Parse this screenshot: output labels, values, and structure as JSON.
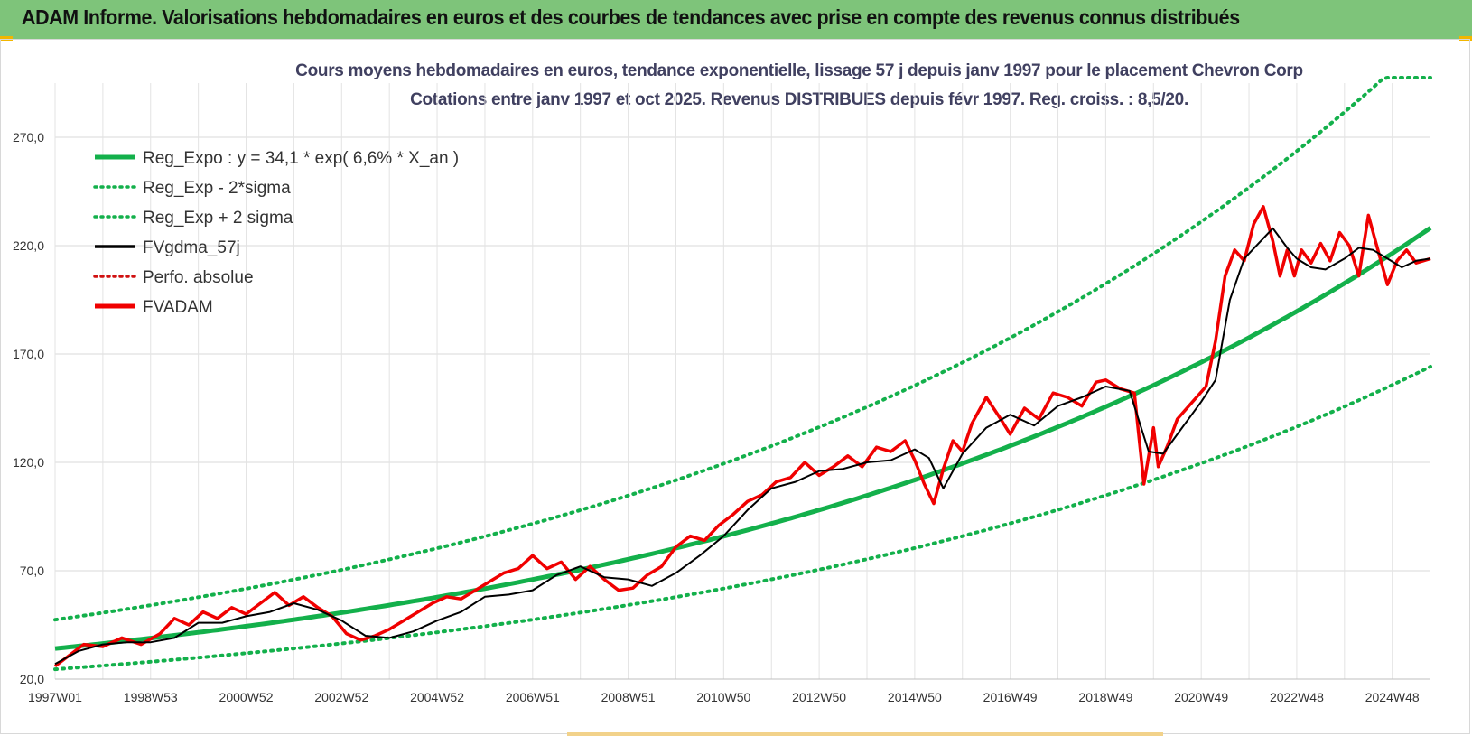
{
  "header": {
    "title": "ADAM Informe. Valorisations hebdomadaires en euros et des courbes de tendances avec prise en compte des revenus connus distribués"
  },
  "chart_data": {
    "type": "line",
    "title": "Cours moyens hebdomadaires en euros, tendance exponentielle, lissage 57 j depuis janv 1997 pour le placement Chevron Corp",
    "subtitle": "Cotations entre janv 1997 et oct 2025. Revenus DISTRIBUES depuis févr 1997. Reg. croiss. : 8,5/20.",
    "xlabel": "",
    "ylabel": "",
    "ylim": [
      20,
      295
    ],
    "xlim": [
      1997.0,
      2025.8
    ],
    "yticks": [
      "20,0",
      "70,0",
      "120,0",
      "170,0",
      "220,0",
      "270,0"
    ],
    "ytick_values": [
      20,
      70,
      120,
      170,
      220,
      270
    ],
    "xticks": [
      "1997W01",
      "1998W53",
      "2000W52",
      "2002W52",
      "2004W52",
      "2006W51",
      "2008W51",
      "2010W50",
      "2012W50",
      "2014W50",
      "2016W49",
      "2018W49",
      "2020W49",
      "2022W48",
      "2024W48"
    ],
    "xtick_values": [
      1997.0,
      1999.0,
      2001.0,
      2003.0,
      2005.0,
      2007.0,
      2009.0,
      2011.0,
      2013.0,
      2015.0,
      2017.0,
      2019.0,
      2021.0,
      2023.0,
      2025.0
    ],
    "grid": true,
    "legend_position": "top-left",
    "regression": {
      "a": 34.1,
      "rate": 0.066,
      "sigma_factor": 1.39
    },
    "series": [
      {
        "name": "Reg_Expo : y = 34,1 * exp( 6,6% *  X_an )",
        "color": "#13b04b",
        "style": "solid-thick"
      },
      {
        "name": "Reg_Exp - 2*sigma",
        "color": "#13b04b",
        "style": "dotted"
      },
      {
        "name": "Reg_Exp + 2 sigma",
        "color": "#13b04b",
        "style": "dotted"
      },
      {
        "name": "FVgdma_57j",
        "color": "#000000",
        "style": "solid",
        "x": [
          1997.0,
          1997.5,
          1998.0,
          1998.5,
          1999.0,
          1999.5,
          2000.0,
          2000.5,
          2001.0,
          2001.5,
          2002.0,
          2002.5,
          2003.0,
          2003.5,
          2004.0,
          2004.5,
          2005.0,
          2005.5,
          2006.0,
          2006.5,
          2007.0,
          2007.5,
          2008.0,
          2008.5,
          2009.0,
          2009.5,
          2010.0,
          2010.5,
          2011.0,
          2011.5,
          2012.0,
          2012.5,
          2013.0,
          2013.5,
          2014.0,
          2014.5,
          2015.0,
          2015.3,
          2015.6,
          2016.0,
          2016.5,
          2017.0,
          2017.5,
          2018.0,
          2018.5,
          2019.0,
          2019.5,
          2019.9,
          2020.2,
          2020.6,
          2021.0,
          2021.3,
          2021.6,
          2021.9,
          2022.2,
          2022.5,
          2022.8,
          2023.0,
          2023.3,
          2023.6,
          2024.0,
          2024.3,
          2024.6,
          2024.9,
          2025.2,
          2025.5,
          2025.8
        ],
        "values": [
          27,
          33,
          36,
          37,
          37,
          39,
          46,
          46,
          49,
          51,
          55,
          52,
          47,
          40,
          39,
          42,
          47,
          51,
          58,
          59,
          61,
          68,
          72,
          67,
          66,
          63,
          69,
          77,
          86,
          98,
          108,
          111,
          116,
          117,
          120,
          121,
          126,
          122,
          108,
          124,
          136,
          142,
          137,
          146,
          150,
          155,
          153,
          125,
          124,
          136,
          148,
          158,
          195,
          214,
          221,
          228,
          219,
          214,
          210,
          209,
          214,
          219,
          218,
          214,
          210,
          213,
          214
        ]
      },
      {
        "name": "Perfo. absolue",
        "color": "#d01010",
        "style": "dotted"
      },
      {
        "name": "FVADAM",
        "color": "#f00000",
        "style": "solid-thick",
        "x": [
          1997.0,
          1997.3,
          1997.6,
          1998.0,
          1998.4,
          1998.8,
          1999.2,
          1999.5,
          1999.8,
          2000.1,
          2000.4,
          2000.7,
          2001.0,
          2001.3,
          2001.6,
          2001.9,
          2002.2,
          2002.5,
          2002.8,
          2003.1,
          2003.4,
          2003.7,
          2004.0,
          2004.3,
          2004.6,
          2004.9,
          2005.2,
          2005.5,
          2005.8,
          2006.1,
          2006.4,
          2006.7,
          2007.0,
          2007.3,
          2007.6,
          2007.9,
          2008.2,
          2008.5,
          2008.8,
          2009.1,
          2009.4,
          2009.7,
          2010.0,
          2010.3,
          2010.6,
          2010.9,
          2011.2,
          2011.5,
          2011.8,
          2012.1,
          2012.4,
          2012.7,
          2013.0,
          2013.3,
          2013.6,
          2013.9,
          2014.2,
          2014.5,
          2014.8,
          2015.0,
          2015.2,
          2015.4,
          2015.6,
          2015.8,
          2016.0,
          2016.2,
          2016.5,
          2016.8,
          2017.0,
          2017.3,
          2017.6,
          2017.9,
          2018.2,
          2018.5,
          2018.8,
          2019.0,
          2019.3,
          2019.6,
          2019.8,
          2020.0,
          2020.1,
          2020.3,
          2020.5,
          2020.7,
          2020.9,
          2021.1,
          2021.3,
          2021.5,
          2021.7,
          2021.9,
          2022.1,
          2022.3,
          2022.5,
          2022.65,
          2022.8,
          2022.95,
          2023.1,
          2023.3,
          2023.5,
          2023.7,
          2023.9,
          2024.1,
          2024.3,
          2024.5,
          2024.7,
          2024.9,
          2025.1,
          2025.3,
          2025.5,
          2025.8
        ],
        "values": [
          26,
          31,
          36,
          35,
          39,
          36,
          41,
          48,
          45,
          51,
          48,
          53,
          50,
          55,
          60,
          54,
          58,
          53,
          49,
          41,
          38,
          40,
          43,
          47,
          51,
          55,
          58,
          57,
          61,
          65,
          69,
          71,
          77,
          71,
          74,
          66,
          72,
          66,
          61,
          62,
          68,
          72,
          81,
          86,
          84,
          91,
          96,
          102,
          105,
          111,
          113,
          120,
          114,
          118,
          123,
          118,
          127,
          125,
          130,
          121,
          110,
          101,
          117,
          130,
          125,
          138,
          150,
          140,
          133,
          145,
          140,
          152,
          150,
          146,
          157,
          158,
          154,
          152,
          110,
          136,
          118,
          128,
          140,
          145,
          150,
          155,
          176,
          206,
          218,
          213,
          230,
          238,
          222,
          206,
          218,
          206,
          218,
          212,
          221,
          213,
          226,
          220,
          206,
          234,
          218,
          202,
          213,
          218,
          212,
          214
        ]
      }
    ]
  }
}
